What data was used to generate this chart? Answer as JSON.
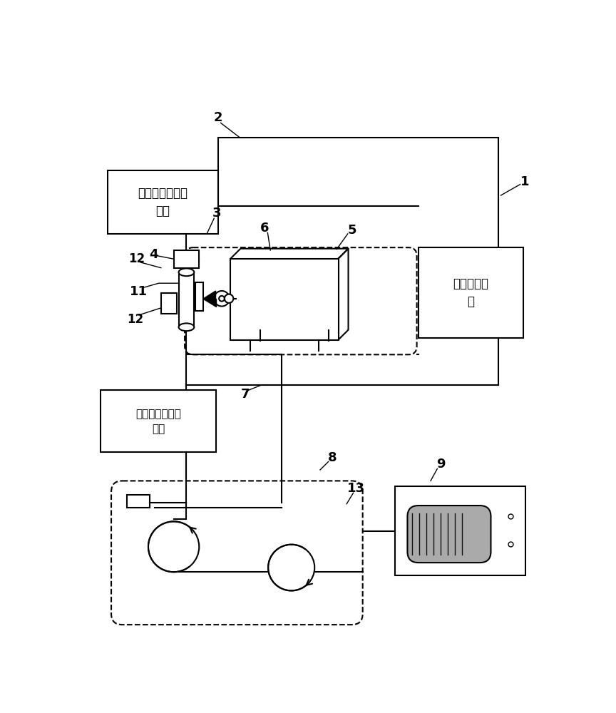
{
  "bg": "#ffffff",
  "lc": "#000000",
  "lw": 1.5,
  "label_box2": "预加工原料装料\n装置",
  "label_box1": "中心控制系\n统",
  "label_box7": "双重涂覆和固化\n单元",
  "font": "SimHei"
}
